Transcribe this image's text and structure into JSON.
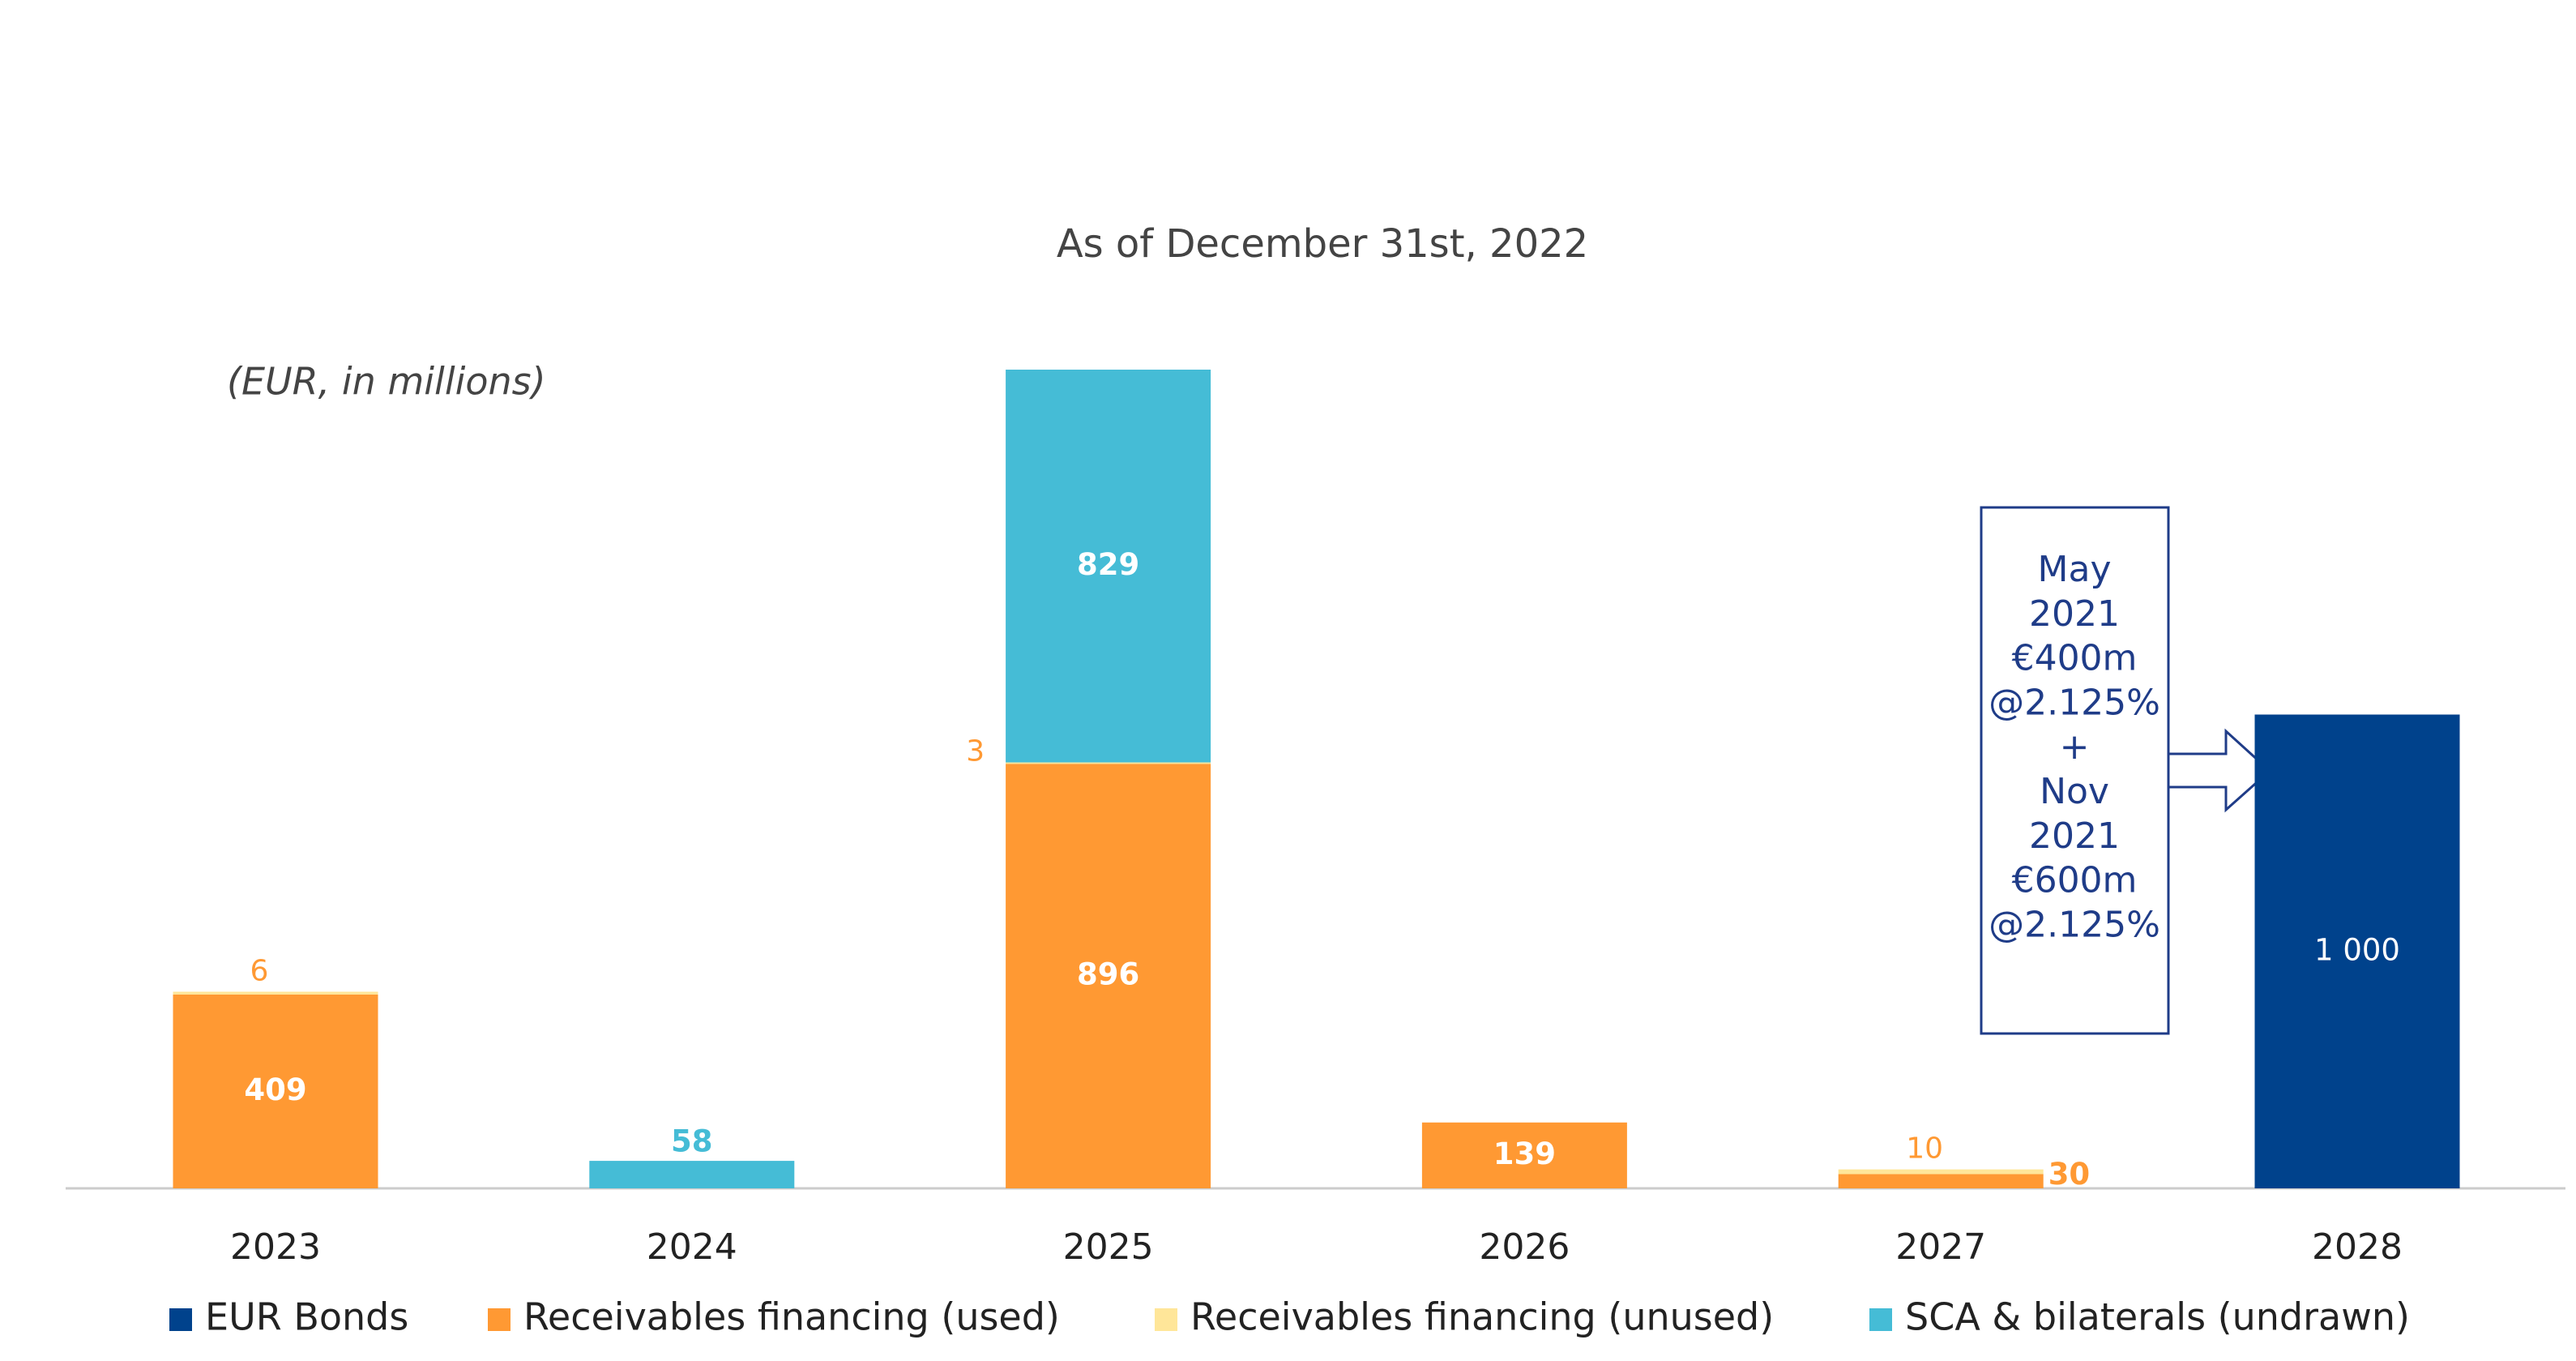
{
  "chart_data": {
    "type": "stacked_bar",
    "title": "As of December 31st, 2022",
    "unit_note": "(EUR, in millions)",
    "categories": [
      "2023",
      "2024",
      "2025",
      "2026",
      "2027",
      "2028"
    ],
    "series": [
      {
        "name": "EUR Bonds",
        "color": "#00428c",
        "values": [
          null,
          null,
          null,
          null,
          null,
          1000
        ],
        "value_labels": [
          null,
          null,
          null,
          null,
          null,
          "1 000"
        ]
      },
      {
        "name": "Receivables financing (used)",
        "color": "#ff9933",
        "values": [
          409,
          null,
          896,
          139,
          30,
          null
        ]
      },
      {
        "name": "Receivables financing (unused)",
        "color": "#ffe699",
        "values": [
          6,
          null,
          3,
          null,
          10,
          null
        ]
      },
      {
        "name": "SCA & bilaterals (undrawn)",
        "color": "#45bcd6",
        "values": [
          null,
          58,
          829,
          null,
          null,
          null
        ]
      }
    ],
    "annotation": [
      "May",
      "2021",
      "€400m",
      "@2.125%",
      "+",
      "Nov",
      "2021",
      "€600m",
      "@2.125%"
    ]
  }
}
